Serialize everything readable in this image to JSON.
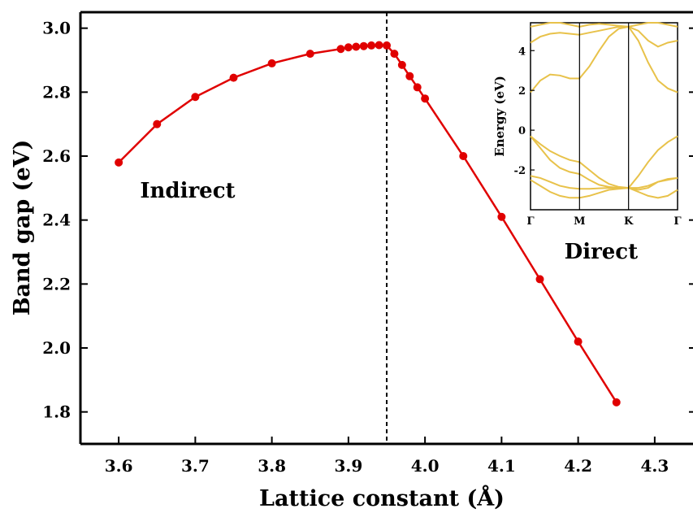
{
  "chart_data": [
    {
      "type": "line",
      "xlabel": "Lattice constant (Å)",
      "ylabel": "Band gap (eV)",
      "xlim": [
        3.55,
        4.35
      ],
      "ylim": [
        1.7,
        3.05
      ],
      "xticks": [
        "3.6",
        "3.7",
        "3.8",
        "3.9",
        "4.0",
        "4.1",
        "4.2",
        "4.3"
      ],
      "yticks": [
        "1.8",
        "2.0",
        "2.2",
        "2.4",
        "2.6",
        "2.8",
        "3.0"
      ],
      "transition_x": 3.95,
      "annotations": [
        {
          "text": "Indirect",
          "x": 3.69,
          "y": 2.47
        },
        {
          "text": "Direct",
          "x": 4.23,
          "y": 2.28
        }
      ],
      "marker_color": "#e00000",
      "series": [
        {
          "x": [
            3.6,
            3.65,
            3.7,
            3.75,
            3.8,
            3.85,
            3.89,
            3.9,
            3.91,
            3.92,
            3.93,
            3.94,
            3.95,
            3.96,
            3.97,
            3.98,
            3.99,
            4.0,
            4.05,
            4.1,
            4.15,
            4.2,
            4.25
          ],
          "y": [
            2.58,
            2.7,
            2.785,
            2.845,
            2.89,
            2.92,
            2.935,
            2.94,
            2.942,
            2.944,
            2.946,
            2.947,
            2.946,
            2.92,
            2.885,
            2.85,
            2.815,
            2.78,
            2.6,
            2.41,
            2.215,
            2.02,
            1.83
          ]
        }
      ]
    },
    {
      "type": "line",
      "ylabel": "Energy (eV)",
      "ylim": [
        -4,
        5.4
      ],
      "yticks": [
        "-2",
        "0",
        "2",
        "4"
      ],
      "xtick_labels": [
        "Γ",
        "M",
        "K",
        "Γ"
      ],
      "line_color": "#e8c24a",
      "series": [
        {
          "x": [
            0,
            0.1,
            0.2,
            0.3,
            0.4,
            0.5
          ],
          "y": [
            1.9,
            2.5,
            2.8,
            2.75,
            2.6,
            2.6
          ]
        },
        {
          "x": [
            0.5,
            0.6,
            0.7,
            0.8,
            0.9,
            1.0
          ],
          "y": [
            2.6,
            3.2,
            4.0,
            4.7,
            5.1,
            5.2
          ]
        },
        {
          "x": [
            1.0,
            1.1,
            1.2,
            1.3,
            1.4,
            1.5
          ],
          "y": [
            5.2,
            4.5,
            3.4,
            2.5,
            2.1,
            1.9
          ]
        },
        {
          "x": [
            0,
            0.1,
            0.2,
            0.3,
            0.4,
            0.5
          ],
          "y": [
            4.4,
            4.7,
            4.85,
            4.9,
            4.85,
            4.8
          ]
        },
        {
          "x": [
            0.5,
            0.6,
            0.7,
            0.8,
            0.9,
            1.0
          ],
          "y": [
            4.8,
            4.9,
            5.0,
            5.1,
            5.2,
            5.2
          ]
        },
        {
          "x": [
            1.0,
            1.1,
            1.2,
            1.3,
            1.4,
            1.5
          ],
          "y": [
            5.2,
            5.0,
            4.5,
            4.2,
            4.4,
            4.5
          ]
        },
        {
          "x": [
            0,
            0.1,
            0.2,
            0.3,
            0.4,
            0.5
          ],
          "y": [
            5.2,
            5.3,
            5.4,
            5.4,
            5.3,
            5.2
          ]
        },
        {
          "x": [
            0.5,
            0.6,
            0.7,
            0.8,
            0.9,
            1.0
          ],
          "y": [
            5.2,
            5.3,
            5.35,
            5.3,
            5.25,
            5.2
          ]
        },
        {
          "x": [
            1.0,
            1.1,
            1.2,
            1.3,
            1.4,
            1.5
          ],
          "y": [
            5.2,
            5.3,
            5.4,
            5.4,
            5.3,
            5.2
          ]
        },
        {
          "x": [
            0,
            0.1,
            0.2,
            0.3,
            0.4,
            0.5
          ],
          "y": [
            -0.3,
            -0.7,
            -1.05,
            -1.3,
            -1.5,
            -1.6
          ]
        },
        {
          "x": [
            0.5,
            0.6,
            0.7,
            0.8,
            0.9,
            1.0
          ],
          "y": [
            -1.6,
            -2.0,
            -2.4,
            -2.7,
            -2.85,
            -2.9
          ]
        },
        {
          "x": [
            1.0,
            1.1,
            1.2,
            1.3,
            1.4,
            1.5
          ],
          "y": [
            -2.9,
            -2.3,
            -1.6,
            -1.0,
            -0.6,
            -0.3
          ]
        },
        {
          "x": [
            0,
            0.1,
            0.2,
            0.3,
            0.4,
            0.5
          ],
          "y": [
            -0.3,
            -0.9,
            -1.5,
            -1.9,
            -2.1,
            -2.2
          ]
        },
        {
          "x": [
            0.5,
            0.6,
            0.7,
            0.8,
            0.9,
            1.0
          ],
          "y": [
            -2.2,
            -2.5,
            -2.75,
            -2.85,
            -2.9,
            -2.9
          ]
        },
        {
          "x": [
            1.0,
            1.1,
            1.2,
            1.3,
            1.4,
            1.5
          ],
          "y": [
            -2.9,
            -2.9,
            -2.8,
            -2.6,
            -2.5,
            -2.4
          ]
        },
        {
          "x": [
            0,
            0.1,
            0.2,
            0.3,
            0.4,
            0.5
          ],
          "y": [
            -2.3,
            -2.4,
            -2.6,
            -2.8,
            -2.9,
            -2.95
          ]
        },
        {
          "x": [
            0.5,
            0.6,
            0.7,
            0.8,
            0.9,
            1.0
          ],
          "y": [
            -2.95,
            -2.95,
            -2.92,
            -2.9,
            -2.9,
            -2.9
          ]
        },
        {
          "x": [
            1.0,
            1.1,
            1.2,
            1.3,
            1.4,
            1.5
          ],
          "y": [
            -2.9,
            -3.0,
            -2.9,
            -2.6,
            -2.45,
            -2.4
          ]
        },
        {
          "x": [
            0,
            0.1,
            0.2,
            0.3,
            0.4,
            0.5
          ],
          "y": [
            -2.5,
            -2.8,
            -3.1,
            -3.3,
            -3.4,
            -3.4
          ]
        },
        {
          "x": [
            0.5,
            0.6,
            0.7,
            0.8,
            0.9,
            1.0
          ],
          "y": [
            -3.4,
            -3.3,
            -3.15,
            -3.0,
            -2.95,
            -2.9
          ]
        },
        {
          "x": [
            1.0,
            1.1,
            1.2,
            1.3,
            1.4,
            1.5
          ],
          "y": [
            -2.9,
            -3.1,
            -3.3,
            -3.4,
            -3.3,
            -3.0
          ]
        }
      ]
    }
  ]
}
